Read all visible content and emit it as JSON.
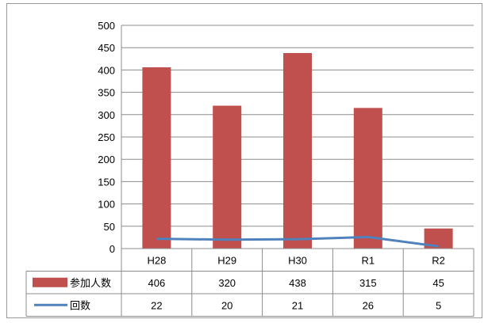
{
  "chart_data": {
    "type": "bar",
    "categories": [
      "H28",
      "H29",
      "H30",
      "R1",
      "R2"
    ],
    "series": [
      {
        "name": "参加人数",
        "type": "bar",
        "color": "#c0504d",
        "values": [
          406,
          320,
          438,
          315,
          45
        ]
      },
      {
        "name": "回数",
        "type": "line",
        "color": "#4f81bd",
        "values": [
          22,
          20,
          21,
          26,
          5
        ]
      }
    ],
    "ylim": [
      0,
      500
    ],
    "yticks": [
      0,
      50,
      100,
      150,
      200,
      250,
      300,
      350,
      400,
      450,
      500
    ],
    "grid": true,
    "legend": "data-table"
  }
}
